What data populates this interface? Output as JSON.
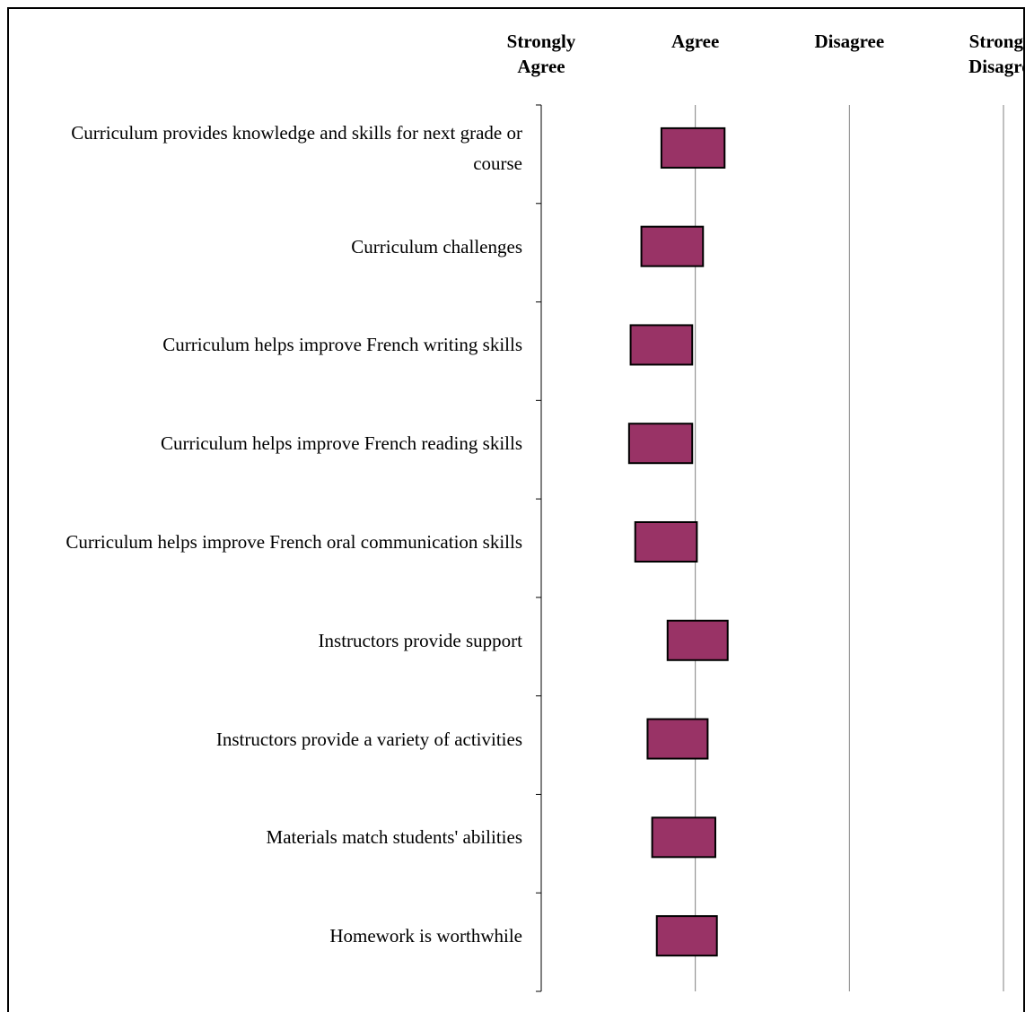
{
  "chart_data": {
    "type": "floating_bar",
    "categories": [
      "Curriculum provides knowledge and skills for next grade or course",
      "Curriculum challenges",
      "Curriculum helps improve French writing skills",
      "Curriculum helps improve French reading skills",
      "Curriculum helps improve French oral communication skills",
      "Instructors provide support",
      "Instructors provide a variety of activities",
      "Materials match students' abilities",
      "Homework is worthwhile"
    ],
    "low": [
      1.78,
      1.65,
      1.58,
      1.57,
      1.61,
      1.82,
      1.69,
      1.72,
      1.75
    ],
    "high": [
      2.19,
      2.05,
      1.98,
      1.98,
      2.01,
      2.21,
      2.08,
      2.13,
      2.14
    ],
    "color": "#993366",
    "xlim": [
      1,
      4
    ],
    "xticks": [
      {
        "value": 1,
        "label": "Strongly Agree"
      },
      {
        "value": 2,
        "label": "Agree"
      },
      {
        "value": 3,
        "label": "Disagree"
      },
      {
        "value": 4,
        "label": "Strongly Disagree"
      }
    ],
    "grid": true
  }
}
